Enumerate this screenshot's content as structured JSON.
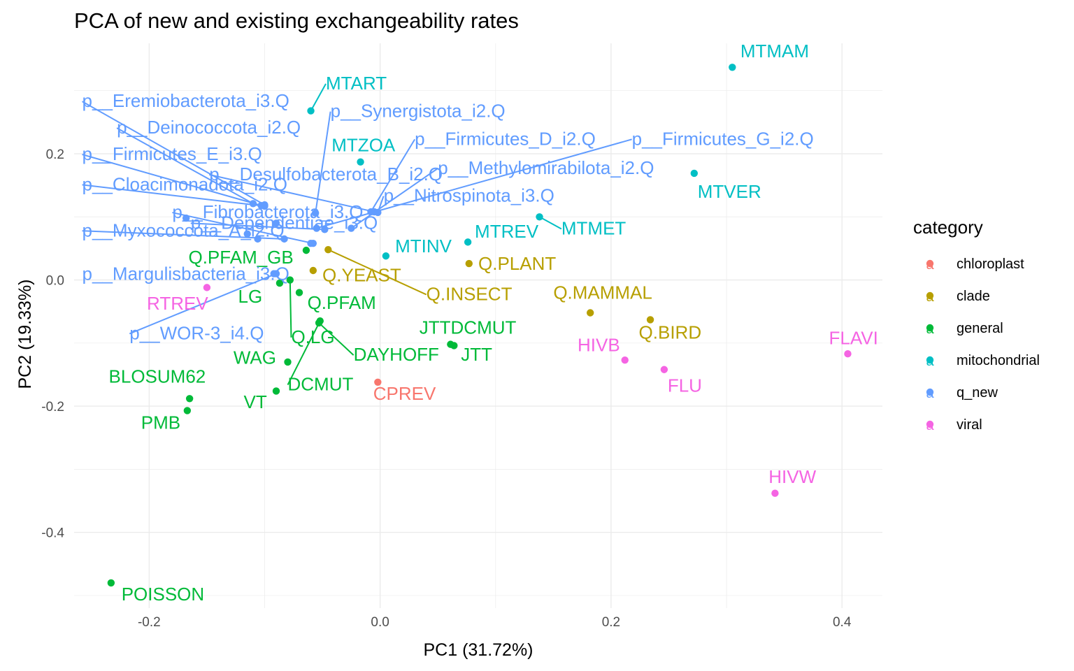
{
  "chart_data": {
    "type": "scatter",
    "title": "PCA of new and existing exchangeability rates",
    "xlabel": "PC1 (31.72%)",
    "ylabel": "PC2 (19.33%)",
    "xlim": [
      -0.265,
      0.435
    ],
    "ylim": [
      -0.52,
      0.375
    ],
    "x_ticks": [
      -0.2,
      0.0,
      0.2,
      0.4
    ],
    "x_tick_labels": [
      "-0.2",
      "0.0",
      "0.2",
      "0.4"
    ],
    "y_ticks": [
      -0.4,
      -0.2,
      0.0,
      0.2
    ],
    "y_tick_labels": [
      "-0.4",
      "-0.2",
      "0.0",
      "0.2"
    ],
    "grid": true,
    "legend": {
      "title": "category",
      "placement": "right",
      "key_glyph": "a",
      "entries": [
        {
          "name": "chloroplast",
          "color": "#F8766D"
        },
        {
          "name": "clade",
          "color": "#B79F00"
        },
        {
          "name": "general",
          "color": "#00BA38"
        },
        {
          "name": "mitochondrial",
          "color": "#00BFC4"
        },
        {
          "name": "q_new",
          "color": "#619CFF"
        },
        {
          "name": "viral",
          "color": "#F564E3"
        }
      ]
    },
    "points": [
      {
        "label": "MTMAM",
        "x": 0.305,
        "y": 0.337,
        "category": "mitochondrial",
        "lx": 0.312,
        "ly": 0.353,
        "anchor": "start",
        "leader": false
      },
      {
        "label": "MTART",
        "x": -0.06,
        "y": 0.268,
        "category": "mitochondrial",
        "lx": -0.047,
        "ly": 0.302,
        "anchor": "start",
        "leader": true
      },
      {
        "label": "MTZOA",
        "x": -0.017,
        "y": 0.187,
        "category": "mitochondrial",
        "lx": -0.042,
        "ly": 0.204,
        "anchor": "start",
        "leader": false
      },
      {
        "label": "MTVER",
        "x": 0.272,
        "y": 0.169,
        "category": "mitochondrial",
        "lx": 0.275,
        "ly": 0.13,
        "anchor": "start",
        "leader": false
      },
      {
        "label": "MTMET",
        "x": 0.138,
        "y": 0.1,
        "category": "mitochondrial",
        "lx": 0.157,
        "ly": 0.072,
        "anchor": "start",
        "leader": true
      },
      {
        "label": "MTREV",
        "x": 0.076,
        "y": 0.06,
        "category": "mitochondrial",
        "lx": 0.082,
        "ly": 0.067,
        "anchor": "start",
        "leader": false
      },
      {
        "label": "MTINV",
        "x": 0.005,
        "y": 0.038,
        "category": "mitochondrial",
        "lx": 0.013,
        "ly": 0.044,
        "anchor": "start",
        "leader": false
      },
      {
        "label": "Q.PLANT",
        "x": 0.077,
        "y": 0.026,
        "category": "clade",
        "lx": 0.085,
        "ly": 0.016,
        "anchor": "start",
        "leader": false
      },
      {
        "label": "Q.YEAST",
        "x": -0.058,
        "y": 0.015,
        "category": "clade",
        "lx": -0.05,
        "ly": -0.002,
        "anchor": "start",
        "leader": false
      },
      {
        "label": "Q.INSECT",
        "x": -0.045,
        "y": 0.048,
        "category": "clade",
        "lx": 0.04,
        "ly": -0.032,
        "anchor": "start",
        "leader": true
      },
      {
        "label": "Q.MAMMAL",
        "x": 0.182,
        "y": -0.052,
        "category": "clade",
        "lx": 0.15,
        "ly": -0.03,
        "anchor": "start",
        "leader": false
      },
      {
        "label": "Q.BIRD",
        "x": 0.234,
        "y": -0.063,
        "category": "clade",
        "lx": 0.224,
        "ly": -0.093,
        "anchor": "start",
        "leader": false
      },
      {
        "label": "CPREV",
        "x": -0.002,
        "y": -0.162,
        "category": "chloroplast",
        "lx": -0.006,
        "ly": -0.19,
        "anchor": "start",
        "leader": false
      },
      {
        "label": "Q.PFAM_GB",
        "x": -0.064,
        "y": 0.047,
        "category": "general",
        "lx": -0.166,
        "ly": 0.026,
        "anchor": "start",
        "leader": false
      },
      {
        "label": "LG",
        "x": -0.087,
        "y": -0.005,
        "category": "general",
        "lx": -0.102,
        "ly": -0.036,
        "anchor": "end",
        "leader": false
      },
      {
        "label": "Q.PFAM",
        "x": -0.07,
        "y": -0.02,
        "category": "general",
        "lx": -0.063,
        "ly": -0.046,
        "anchor": "start",
        "leader": false
      },
      {
        "label": "Q.LG",
        "x": -0.078,
        "y": 0.0,
        "category": "general",
        "lx": -0.077,
        "ly": -0.1,
        "anchor": "start",
        "leader": true
      },
      {
        "label": "DAYHOFF",
        "x": -0.053,
        "y": -0.068,
        "category": "general",
        "lx": -0.023,
        "ly": -0.128,
        "anchor": "start",
        "leader": true
      },
      {
        "label": "DCMUT",
        "x": -0.052,
        "y": -0.065,
        "category": "general",
        "lx": -0.08,
        "ly": -0.175,
        "anchor": "start",
        "leader": true
      },
      {
        "label": "JTTDCMUT",
        "x": 0.061,
        "y": -0.102,
        "category": "general",
        "lx": 0.034,
        "ly": -0.085,
        "anchor": "start",
        "leader": false
      },
      {
        "label": "JTT",
        "x": 0.064,
        "y": -0.104,
        "category": "general",
        "lx": 0.07,
        "ly": -0.128,
        "anchor": "start",
        "leader": false
      },
      {
        "label": "WAG",
        "x": -0.08,
        "y": -0.13,
        "category": "general",
        "lx": -0.09,
        "ly": -0.133,
        "anchor": "end",
        "leader": false
      },
      {
        "label": "VT",
        "x": -0.09,
        "y": -0.176,
        "category": "general",
        "lx": -0.098,
        "ly": -0.203,
        "anchor": "end",
        "leader": false
      },
      {
        "label": "BLOSUM62",
        "x": -0.165,
        "y": -0.188,
        "category": "general",
        "lx": -0.235,
        "ly": -0.163,
        "anchor": "start",
        "leader": false
      },
      {
        "label": "PMB",
        "x": -0.167,
        "y": -0.207,
        "category": "general",
        "lx": -0.207,
        "ly": -0.236,
        "anchor": "start",
        "leader": false
      },
      {
        "label": "POISSON",
        "x": -0.233,
        "y": -0.48,
        "category": "general",
        "lx": -0.224,
        "ly": -0.508,
        "anchor": "start",
        "leader": false
      },
      {
        "label": "RTREV",
        "x": -0.15,
        "y": -0.012,
        "category": "viral",
        "lx": -0.202,
        "ly": -0.047,
        "anchor": "start",
        "leader": false
      },
      {
        "label": "HIVB",
        "x": 0.212,
        "y": -0.127,
        "category": "viral",
        "lx": 0.171,
        "ly": -0.113,
        "anchor": "start",
        "leader": false
      },
      {
        "label": "FLU",
        "x": 0.246,
        "y": -0.142,
        "category": "viral",
        "lx": 0.249,
        "ly": -0.177,
        "anchor": "start",
        "leader": false
      },
      {
        "label": "FLAVI",
        "x": 0.405,
        "y": -0.117,
        "category": "viral",
        "lx": 0.41,
        "ly": -0.102,
        "anchor": "middle",
        "leader": false
      },
      {
        "label": "HIVW",
        "x": 0.342,
        "y": -0.338,
        "category": "viral",
        "lx": 0.357,
        "ly": -0.322,
        "anchor": "middle",
        "leader": false
      },
      {
        "label": "p__Eremiobacterota_i3.Q",
        "x": -0.1,
        "y": 0.119,
        "category": "q_new",
        "lx": -0.258,
        "ly": 0.274,
        "anchor": "start",
        "leader": true
      },
      {
        "label": "p__Synergistota_i2.Q",
        "x": -0.056,
        "y": 0.106,
        "category": "q_new",
        "lx": -0.043,
        "ly": 0.258,
        "anchor": "start",
        "leader": true
      },
      {
        "label": "p__Deinococcota_i2.Q",
        "x": -0.11,
        "y": 0.121,
        "category": "q_new",
        "lx": -0.228,
        "ly": 0.232,
        "anchor": "start",
        "leader": true
      },
      {
        "label": "p__Firmicutes_D_i2.Q",
        "x": -0.008,
        "y": 0.108,
        "category": "q_new",
        "lx": 0.03,
        "ly": 0.214,
        "anchor": "start",
        "leader": true
      },
      {
        "label": "p__Firmicutes_G_i2.Q",
        "x": -0.055,
        "y": 0.082,
        "category": "q_new",
        "lx": 0.218,
        "ly": 0.214,
        "anchor": "start",
        "leader": true
      },
      {
        "label": "p__Firmicutes_E_i3.Q",
        "x": -0.103,
        "y": 0.118,
        "category": "q_new",
        "lx": -0.258,
        "ly": 0.19,
        "anchor": "start",
        "leader": true
      },
      {
        "label": "p__Methylomirabilota_i2.Q",
        "x": -0.025,
        "y": 0.082,
        "category": "q_new",
        "lx": 0.05,
        "ly": 0.168,
        "anchor": "start",
        "leader": true
      },
      {
        "label": "p__Desulfobacterota_B_i2.Q",
        "x": -0.005,
        "y": 0.108,
        "category": "q_new",
        "lx": -0.148,
        "ly": 0.158,
        "anchor": "start",
        "leader": true
      },
      {
        "label": "p__Cloacimonadota_i2.Q",
        "x": -0.1,
        "y": 0.117,
        "category": "q_new",
        "lx": -0.258,
        "ly": 0.142,
        "anchor": "start",
        "leader": true
      },
      {
        "label": "p__Nitrospinota_i3.Q",
        "x": -0.002,
        "y": 0.107,
        "category": "q_new",
        "lx": 0.003,
        "ly": 0.124,
        "anchor": "start",
        "leader": true
      },
      {
        "label": "p__Fibrobacterota_i3.Q",
        "x": -0.058,
        "y": 0.058,
        "category": "q_new",
        "lx": -0.18,
        "ly": 0.098,
        "anchor": "start",
        "leader": true
      },
      {
        "label": "p__Dependentiae_i3.Q",
        "x": -0.048,
        "y": 0.08,
        "category": "q_new",
        "lx": -0.164,
        "ly": 0.081,
        "anchor": "start",
        "leader": true
      },
      {
        "label": "p__Myxococcota_A_i2.Q",
        "x": -0.083,
        "y": 0.065,
        "category": "q_new",
        "lx": -0.258,
        "ly": 0.069,
        "anchor": "start",
        "leader": true
      },
      {
        "label": "p__Margulisbacteria_i3.Q",
        "x": -0.092,
        "y": 0.01,
        "category": "q_new",
        "lx": -0.258,
        "ly": 0.0,
        "anchor": "start",
        "leader": false
      },
      {
        "label": "p__WOR-3_i4.Q",
        "x": -0.09,
        "y": 0.01,
        "category": "q_new",
        "lx": -0.217,
        "ly": -0.094,
        "anchor": "start",
        "leader": true
      },
      {
        "label": "",
        "x": -0.168,
        "y": 0.098,
        "category": "q_new"
      },
      {
        "label": "",
        "x": -0.115,
        "y": 0.073,
        "category": "q_new"
      },
      {
        "label": "",
        "x": -0.106,
        "y": 0.065,
        "category": "q_new"
      },
      {
        "label": "",
        "x": -0.09,
        "y": 0.09,
        "category": "q_new"
      },
      {
        "label": "",
        "x": -0.06,
        "y": 0.058,
        "category": "q_new"
      }
    ]
  }
}
